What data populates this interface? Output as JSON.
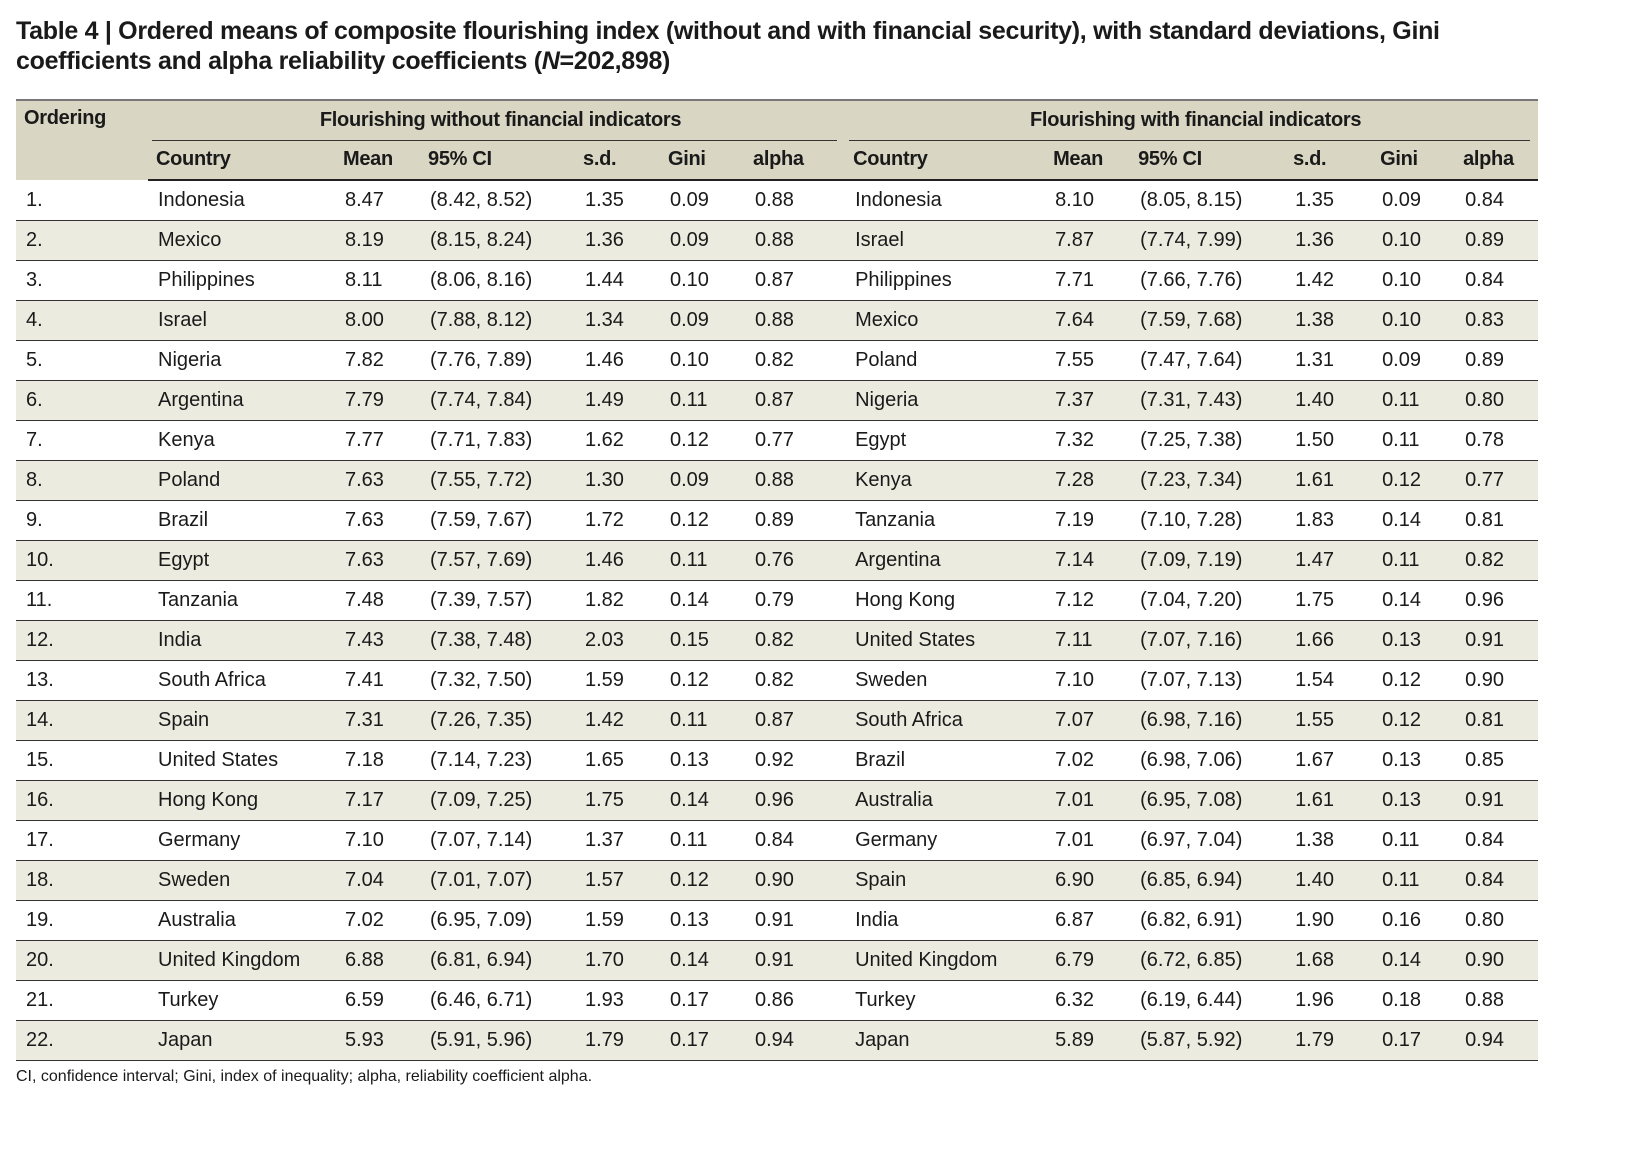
{
  "title": {
    "prefix": "Table 4 | Ordered means of composite flourishing index (without and with financial security), with standard deviations, Gini coefficients and alpha reliability coefficients (",
    "n_label": "N",
    "suffix": "=202,898)"
  },
  "header": {
    "ordering": "Ordering",
    "group_without": "Flourishing without financial indicators",
    "group_with": "Flourishing with financial indicators",
    "columns": [
      "Country",
      "Mean",
      "95% CI",
      "s.d.",
      "Gini",
      "alpha"
    ]
  },
  "rows": [
    [
      "1.",
      "Indonesia",
      "8.47",
      "(8.42, 8.52)",
      "1.35",
      "0.09",
      "0.88",
      "Indonesia",
      "8.10",
      "(8.05, 8.15)",
      "1.35",
      "0.09",
      "0.84"
    ],
    [
      "2.",
      "Mexico",
      "8.19",
      "(8.15, 8.24)",
      "1.36",
      "0.09",
      "0.88",
      "Israel",
      "7.87",
      "(7.74, 7.99)",
      "1.36",
      "0.10",
      "0.89"
    ],
    [
      "3.",
      "Philippines",
      "8.11",
      "(8.06, 8.16)",
      "1.44",
      "0.10",
      "0.87",
      "Philippines",
      "7.71",
      "(7.66, 7.76)",
      "1.42",
      "0.10",
      "0.84"
    ],
    [
      "4.",
      "Israel",
      "8.00",
      "(7.88, 8.12)",
      "1.34",
      "0.09",
      "0.88",
      "Mexico",
      "7.64",
      "(7.59, 7.68)",
      "1.38",
      "0.10",
      "0.83"
    ],
    [
      "5.",
      "Nigeria",
      "7.82",
      "(7.76, 7.89)",
      "1.46",
      "0.10",
      "0.82",
      "Poland",
      "7.55",
      "(7.47, 7.64)",
      "1.31",
      "0.09",
      "0.89"
    ],
    [
      "6.",
      "Argentina",
      "7.79",
      "(7.74, 7.84)",
      "1.49",
      "0.11",
      "0.87",
      "Nigeria",
      "7.37",
      "(7.31, 7.43)",
      "1.40",
      "0.11",
      "0.80"
    ],
    [
      "7.",
      "Kenya",
      "7.77",
      "(7.71, 7.83)",
      "1.62",
      "0.12",
      "0.77",
      "Egypt",
      "7.32",
      "(7.25, 7.38)",
      "1.50",
      "0.11",
      "0.78"
    ],
    [
      "8.",
      "Poland",
      "7.63",
      "(7.55, 7.72)",
      "1.30",
      "0.09",
      "0.88",
      "Kenya",
      "7.28",
      "(7.23, 7.34)",
      "1.61",
      "0.12",
      "0.77"
    ],
    [
      "9.",
      "Brazil",
      "7.63",
      "(7.59, 7.67)",
      "1.72",
      "0.12",
      "0.89",
      "Tanzania",
      "7.19",
      "(7.10, 7.28)",
      "1.83",
      "0.14",
      "0.81"
    ],
    [
      "10.",
      "Egypt",
      "7.63",
      "(7.57, 7.69)",
      "1.46",
      "0.11",
      "0.76",
      "Argentina",
      "7.14",
      "(7.09, 7.19)",
      "1.47",
      "0.11",
      "0.82"
    ],
    [
      "11.",
      "Tanzania",
      "7.48",
      "(7.39, 7.57)",
      "1.82",
      "0.14",
      "0.79",
      "Hong Kong",
      "7.12",
      "(7.04, 7.20)",
      "1.75",
      "0.14",
      "0.96"
    ],
    [
      "12.",
      "India",
      "7.43",
      "(7.38, 7.48)",
      "2.03",
      "0.15",
      "0.82",
      "United States",
      "7.11",
      "(7.07, 7.16)",
      "1.66",
      "0.13",
      "0.91"
    ],
    [
      "13.",
      "South Africa",
      "7.41",
      "(7.32, 7.50)",
      "1.59",
      "0.12",
      "0.82",
      "Sweden",
      "7.10",
      "(7.07, 7.13)",
      "1.54",
      "0.12",
      "0.90"
    ],
    [
      "14.",
      "Spain",
      "7.31",
      "(7.26, 7.35)",
      "1.42",
      "0.11",
      "0.87",
      "South Africa",
      "7.07",
      "(6.98, 7.16)",
      "1.55",
      "0.12",
      "0.81"
    ],
    [
      "15.",
      "United States",
      "7.18",
      "(7.14, 7.23)",
      "1.65",
      "0.13",
      "0.92",
      "Brazil",
      "7.02",
      "(6.98, 7.06)",
      "1.67",
      "0.13",
      "0.85"
    ],
    [
      "16.",
      "Hong Kong",
      "7.17",
      "(7.09, 7.25)",
      "1.75",
      "0.14",
      "0.96",
      "Australia",
      "7.01",
      "(6.95, 7.08)",
      "1.61",
      "0.13",
      "0.91"
    ],
    [
      "17.",
      "Germany",
      "7.10",
      "(7.07, 7.14)",
      "1.37",
      "0.11",
      "0.84",
      "Germany",
      "7.01",
      "(6.97, 7.04)",
      "1.38",
      "0.11",
      "0.84"
    ],
    [
      "18.",
      "Sweden",
      "7.04",
      "(7.01, 7.07)",
      "1.57",
      "0.12",
      "0.90",
      "Spain",
      "6.90",
      "(6.85, 6.94)",
      "1.40",
      "0.11",
      "0.84"
    ],
    [
      "19.",
      "Australia",
      "7.02",
      "(6.95, 7.09)",
      "1.59",
      "0.13",
      "0.91",
      "India",
      "6.87",
      "(6.82, 6.91)",
      "1.90",
      "0.16",
      "0.80"
    ],
    [
      "20.",
      "United Kingdom",
      "6.88",
      "(6.81, 6.94)",
      "1.70",
      "0.14",
      "0.91",
      "United Kingdom",
      "6.79",
      "(6.72, 6.85)",
      "1.68",
      "0.14",
      "0.90"
    ],
    [
      "21.",
      "Turkey",
      "6.59",
      "(6.46, 6.71)",
      "1.93",
      "0.17",
      "0.86",
      "Turkey",
      "6.32",
      "(6.19, 6.44)",
      "1.96",
      "0.18",
      "0.88"
    ],
    [
      "22.",
      "Japan",
      "5.93",
      "(5.91, 5.96)",
      "1.79",
      "0.17",
      "0.94",
      "Japan",
      "5.89",
      "(5.87, 5.92)",
      "1.79",
      "0.17",
      "0.94"
    ]
  ],
  "footnote": "CI, confidence interval; Gini, index of inequality; alpha, reliability coefficient alpha."
}
